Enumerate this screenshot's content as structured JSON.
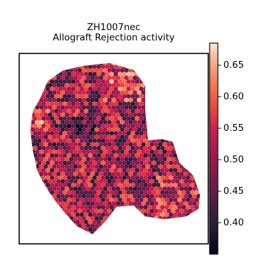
{
  "chart_data": {
    "type": "heatmap",
    "title_line1": "ZH1007nec",
    "title_line2": "Allograft Rejection activity",
    "colorbar": {
      "ticks": [
        "0.40",
        "0.45",
        "0.50",
        "0.55",
        "0.60",
        "0.65"
      ],
      "tick_values": [
        0.4,
        0.45,
        0.5,
        0.55,
        0.6,
        0.65
      ],
      "vmin": 0.35,
      "vmax": 0.685,
      "colormap": "rocket"
    },
    "grid": false,
    "axis_ticks_shown": false,
    "approx_spot_value_range": [
      0.36,
      0.68
    ]
  }
}
